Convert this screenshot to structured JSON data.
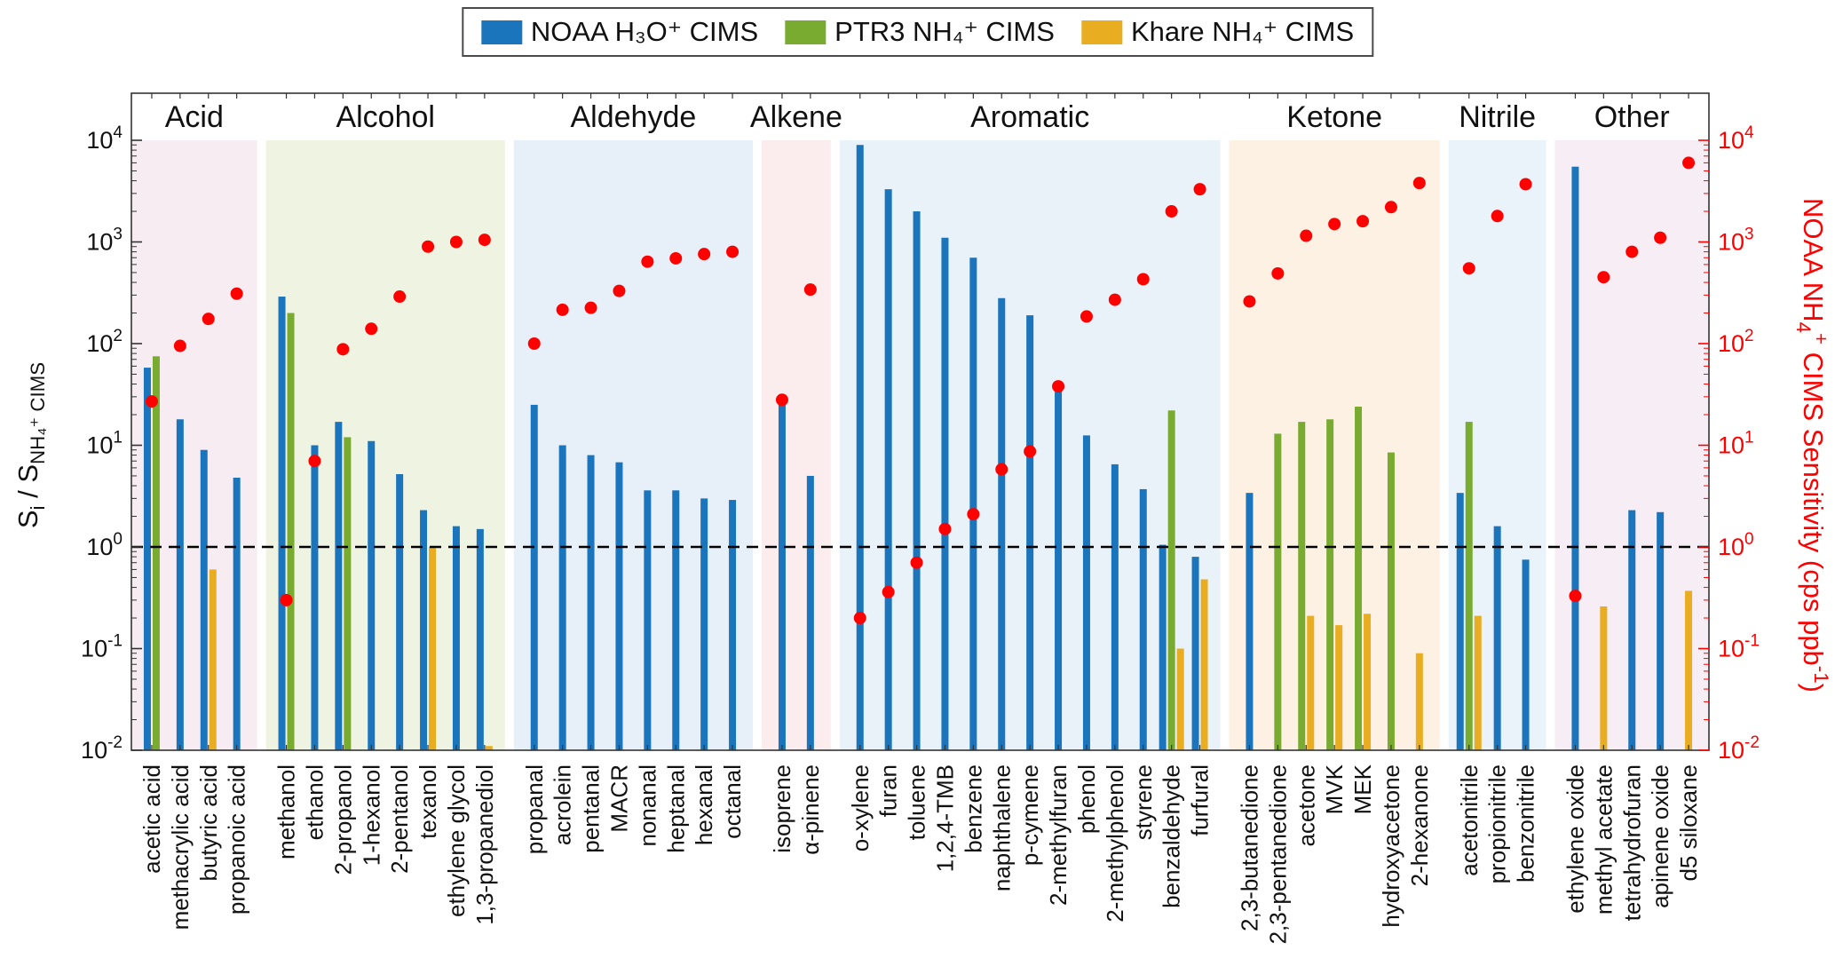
{
  "legend": {
    "items": [
      {
        "name": "noaa-h3o-cims",
        "label": "NOAA H₃O⁺ CIMS",
        "color": "#1b75bc"
      },
      {
        "name": "ptr3-nh4-cims",
        "label": "PTR3 NH₄⁺ CIMS",
        "color": "#79ab30"
      },
      {
        "name": "khare-nh4-cims",
        "label": "Khare NH₄⁺ CIMS",
        "color": "#e9ad21"
      }
    ]
  },
  "axes": {
    "yscale": "log",
    "ylim": [
      0.01,
      10000
    ],
    "reference_line": 1.0,
    "left_label_text": "Si / SNH4+ CIMS",
    "left_label_segments": [
      {
        "t": "S"
      },
      {
        "t": "i",
        "sub": true
      },
      {
        "t": " / S"
      },
      {
        "t": "NH₄⁺ CIMS",
        "sub": true
      }
    ],
    "right_label_text": "NOAA NH4+ CIMS Sensitivity (cps ppb-1)",
    "right_label_segments": [
      {
        "t": "NOAA NH"
      },
      {
        "t": "4",
        "sub": true
      },
      {
        "t": "+",
        "sup": true
      },
      {
        "t": " CIMS Sensitivity (cps ppb"
      },
      {
        "t": "-1",
        "sup": true
      },
      {
        "t": ")"
      }
    ],
    "right_color": "#ff0000",
    "frame_color": "#333333",
    "ticks": [
      {
        "v": 0.01,
        "base": "10",
        "exp": "-2"
      },
      {
        "v": 0.1,
        "base": "10",
        "exp": "-1"
      },
      {
        "v": 1,
        "base": "10",
        "exp": "0"
      },
      {
        "v": 10,
        "base": "10",
        "exp": "1"
      },
      {
        "v": 100,
        "base": "10",
        "exp": "2"
      },
      {
        "v": 1000,
        "base": "10",
        "exp": "3"
      },
      {
        "v": 10000,
        "base": "10",
        "exp": "4"
      }
    ]
  },
  "chart_data": {
    "type": "bar",
    "yscale": "log",
    "grid": false,
    "legend_position": "top-center",
    "reference_line_y": 1.0,
    "series": [
      {
        "key": "h3o",
        "name": "NOAA H₃O⁺ CIMS",
        "color": "#1b75bc",
        "axis": "left",
        "style": "bar"
      },
      {
        "key": "ptr3",
        "name": "PTR3 NH₄⁺ CIMS",
        "color": "#79ab30",
        "axis": "left",
        "style": "bar"
      },
      {
        "key": "khare",
        "name": "Khare NH₄⁺ CIMS",
        "color": "#e9ad21",
        "axis": "left",
        "style": "bar"
      },
      {
        "key": "sens",
        "name": "NOAA NH₄⁺ CIMS Sensitivity",
        "color": "#ff0000",
        "axis": "right",
        "style": "scatter"
      }
    ],
    "groups": [
      {
        "name": "Acid",
        "bg": "#f7ecf1",
        "compounds": [
          {
            "name": "acetic acid",
            "h3o": 58,
            "ptr3": 75,
            "khare": null,
            "sens": 27
          },
          {
            "name": "methacrylic acid",
            "h3o": 18,
            "ptr3": null,
            "khare": null,
            "sens": 95
          },
          {
            "name": "butyric acid",
            "h3o": 9,
            "ptr3": null,
            "khare": 0.6,
            "sens": 175
          },
          {
            "name": "propanoic acid",
            "h3o": 4.8,
            "ptr3": null,
            "khare": null,
            "sens": 310
          }
        ]
      },
      {
        "name": "Alcohol",
        "bg": "#eff4e2",
        "compounds": [
          {
            "name": "methanol",
            "h3o": 290,
            "ptr3": 200,
            "khare": null,
            "sens": 0.3
          },
          {
            "name": "ethanol",
            "h3o": 10,
            "ptr3": null,
            "khare": null,
            "sens": 7
          },
          {
            "name": "2-propanol",
            "h3o": 17,
            "ptr3": 12,
            "khare": null,
            "sens": 88
          },
          {
            "name": "1-hexanol",
            "h3o": 11,
            "ptr3": null,
            "khare": null,
            "sens": 140
          },
          {
            "name": "2-pentanol",
            "h3o": 5.2,
            "ptr3": null,
            "khare": null,
            "sens": 290
          },
          {
            "name": "texanol",
            "h3o": 2.3,
            "ptr3": null,
            "khare": 1.0,
            "sens": 900
          },
          {
            "name": "ethylene glycol",
            "h3o": 1.6,
            "ptr3": null,
            "khare": null,
            "sens": 1000
          },
          {
            "name": "1,3-propanediol",
            "h3o": 1.5,
            "ptr3": null,
            "khare": 0.011,
            "sens": 1050
          }
        ]
      },
      {
        "name": "Aldehyde",
        "bg": "#e7f0f9",
        "compounds": [
          {
            "name": "propanal",
            "h3o": 25,
            "ptr3": null,
            "khare": null,
            "sens": 100
          },
          {
            "name": "acrolein",
            "h3o": 10,
            "ptr3": null,
            "khare": null,
            "sens": 215
          },
          {
            "name": "pentanal",
            "h3o": 8,
            "ptr3": null,
            "khare": null,
            "sens": 225
          },
          {
            "name": "MACR",
            "h3o": 6.8,
            "ptr3": null,
            "khare": null,
            "sens": 330
          },
          {
            "name": "nonanal",
            "h3o": 3.6,
            "ptr3": null,
            "khare": null,
            "sens": 640
          },
          {
            "name": "heptanal",
            "h3o": 3.6,
            "ptr3": null,
            "khare": null,
            "sens": 690
          },
          {
            "name": "hexanal",
            "h3o": 3.0,
            "ptr3": null,
            "khare": null,
            "sens": 760
          },
          {
            "name": "octanal",
            "h3o": 2.9,
            "ptr3": null,
            "khare": null,
            "sens": 800
          }
        ]
      },
      {
        "name": "Alkene",
        "bg": "#fbecee",
        "compounds": [
          {
            "name": "isoprene",
            "h3o": 30,
            "ptr3": null,
            "khare": null,
            "sens": 28
          },
          {
            "name": "α-pinene",
            "h3o": 5,
            "ptr3": null,
            "khare": null,
            "sens": 340
          }
        ]
      },
      {
        "name": "Aromatic",
        "bg": "#e9f1f9",
        "compounds": [
          {
            "name": "o-xylene",
            "h3o": 9000,
            "ptr3": null,
            "khare": null,
            "sens": 0.2
          },
          {
            "name": "furan",
            "h3o": 3300,
            "ptr3": null,
            "khare": null,
            "sens": 0.36
          },
          {
            "name": "toluene",
            "h3o": 2000,
            "ptr3": null,
            "khare": null,
            "sens": 0.7
          },
          {
            "name": "1,2,4-TMB",
            "h3o": 1100,
            "ptr3": null,
            "khare": null,
            "sens": 1.5
          },
          {
            "name": "benzene",
            "h3o": 700,
            "ptr3": null,
            "khare": null,
            "sens": 2.1
          },
          {
            "name": "naphthalene",
            "h3o": 280,
            "ptr3": null,
            "khare": null,
            "sens": 5.8
          },
          {
            "name": "p-cymene",
            "h3o": 190,
            "ptr3": null,
            "khare": null,
            "sens": 8.7
          },
          {
            "name": "2-methylfuran",
            "h3o": 40,
            "ptr3": null,
            "khare": null,
            "sens": 38
          },
          {
            "name": "phenol",
            "h3o": 12.5,
            "ptr3": null,
            "khare": null,
            "sens": 185
          },
          {
            "name": "2-methylphenol",
            "h3o": 6.5,
            "ptr3": null,
            "khare": null,
            "sens": 270
          },
          {
            "name": "styrene",
            "h3o": 3.7,
            "ptr3": null,
            "khare": null,
            "sens": 430
          },
          {
            "name": "benzaldehyde",
            "h3o": 1.05,
            "ptr3": 22,
            "khare": 0.1,
            "sens": 2000
          },
          {
            "name": "furfural",
            "h3o": 0.8,
            "ptr3": null,
            "khare": 0.48,
            "sens": 3300
          }
        ]
      },
      {
        "name": "Ketone",
        "bg": "#fdf1e3",
        "compounds": [
          {
            "name": "2,3-butanedione",
            "h3o": 3.4,
            "ptr3": null,
            "khare": null,
            "sens": 260
          },
          {
            "name": "2,3-pentanedione",
            "h3o": null,
            "ptr3": 13,
            "khare": null,
            "sens": 490
          },
          {
            "name": "acetone",
            "h3o": null,
            "ptr3": 17,
            "khare": 0.21,
            "sens": 1150
          },
          {
            "name": "MVK",
            "h3o": null,
            "ptr3": 18,
            "khare": 0.17,
            "sens": 1500
          },
          {
            "name": "MEK",
            "h3o": null,
            "ptr3": 24,
            "khare": 0.22,
            "sens": 1600
          },
          {
            "name": "hydroxyacetone",
            "h3o": null,
            "ptr3": 8.5,
            "khare": null,
            "sens": 2200
          },
          {
            "name": "2-hexanone",
            "h3o": null,
            "ptr3": null,
            "khare": 0.09,
            "sens": 3800
          }
        ]
      },
      {
        "name": "Nitrile",
        "bg": "#eaf2fa",
        "compounds": [
          {
            "name": "acetonitrile",
            "h3o": 3.4,
            "ptr3": 17,
            "khare": 0.21,
            "sens": 550
          },
          {
            "name": "propionitrile",
            "h3o": 1.6,
            "ptr3": null,
            "khare": null,
            "sens": 1800
          },
          {
            "name": "benzonitrile",
            "h3o": 0.75,
            "ptr3": null,
            "khare": null,
            "sens": 3700
          }
        ]
      },
      {
        "name": "Other",
        "bg": "#f7edf4",
        "compounds": [
          {
            "name": "ethylene oxide",
            "h3o": 5500,
            "ptr3": null,
            "khare": null,
            "sens": 0.33
          },
          {
            "name": "methyl acetate",
            "h3o": null,
            "ptr3": null,
            "khare": 0.26,
            "sens": 450
          },
          {
            "name": "tetrahydrofuran",
            "h3o": 2.3,
            "ptr3": null,
            "khare": null,
            "sens": 800
          },
          {
            "name": "apinene oxide",
            "h3o": 2.2,
            "ptr3": null,
            "khare": null,
            "sens": 1100
          },
          {
            "name": "d5 siloxane",
            "h3o": null,
            "ptr3": null,
            "khare": 0.37,
            "sens": 6000
          }
        ]
      }
    ]
  }
}
